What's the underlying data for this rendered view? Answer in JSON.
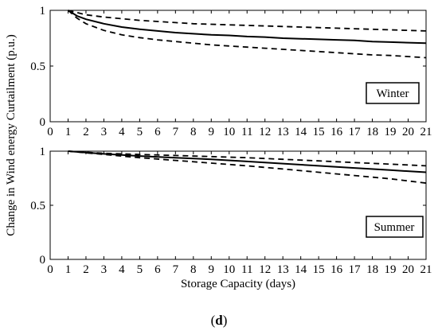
{
  "chart_data": [
    {
      "type": "line",
      "panel": "top",
      "legend_label": "Winter",
      "legend_position": "lower-right",
      "x_ticks": [
        0,
        1,
        2,
        3,
        4,
        5,
        6,
        7,
        8,
        9,
        10,
        11,
        12,
        13,
        14,
        15,
        16,
        17,
        18,
        19,
        20,
        21
      ],
      "y_ticks": [
        "0",
        "0.5",
        "1"
      ],
      "xlim": [
        0,
        21
      ],
      "ylim": [
        0,
        1
      ],
      "grid": false,
      "series": [
        {
          "style": "solid",
          "x": [
            1,
            1.5,
            2,
            3,
            4,
            5,
            6,
            7,
            8,
            9,
            10,
            11,
            12,
            13,
            14,
            15,
            16,
            17,
            18,
            19,
            20,
            21
          ],
          "y": [
            1.0,
            0.95,
            0.92,
            0.88,
            0.85,
            0.83,
            0.815,
            0.8,
            0.79,
            0.78,
            0.775,
            0.765,
            0.76,
            0.75,
            0.745,
            0.74,
            0.735,
            0.73,
            0.72,
            0.715,
            0.71,
            0.705
          ]
        },
        {
          "style": "dashed",
          "x": [
            1,
            1.5,
            2,
            3,
            4,
            5,
            6,
            7,
            8,
            9,
            10,
            11,
            12,
            13,
            14,
            15,
            16,
            17,
            18,
            19,
            20,
            21
          ],
          "y": [
            1.0,
            0.98,
            0.96,
            0.94,
            0.925,
            0.91,
            0.9,
            0.89,
            0.88,
            0.875,
            0.87,
            0.865,
            0.86,
            0.855,
            0.85,
            0.845,
            0.84,
            0.835,
            0.83,
            0.825,
            0.82,
            0.815
          ]
        },
        {
          "style": "dashed",
          "x": [
            1,
            1.5,
            2,
            3,
            4,
            5,
            6,
            7,
            8,
            9,
            10,
            11,
            12,
            13,
            14,
            15,
            16,
            17,
            18,
            19,
            20,
            21
          ],
          "y": [
            1.0,
            0.93,
            0.88,
            0.82,
            0.78,
            0.755,
            0.735,
            0.72,
            0.705,
            0.69,
            0.68,
            0.67,
            0.66,
            0.65,
            0.64,
            0.63,
            0.62,
            0.61,
            0.6,
            0.595,
            0.585,
            0.575
          ]
        }
      ]
    },
    {
      "type": "line",
      "panel": "bottom",
      "legend_label": "Summer",
      "legend_position": "lower-right",
      "x_ticks": [
        0,
        1,
        2,
        3,
        4,
        5,
        6,
        7,
        8,
        9,
        10,
        11,
        12,
        13,
        14,
        15,
        16,
        17,
        18,
        19,
        20,
        21
      ],
      "y_ticks": [
        "0",
        "0.5",
        "1"
      ],
      "xlim": [
        0,
        21
      ],
      "ylim": [
        0,
        1
      ],
      "grid": false,
      "series": [
        {
          "style": "solid",
          "x": [
            1,
            3,
            5,
            7,
            9,
            11,
            13,
            15,
            17,
            19,
            21
          ],
          "y": [
            1.0,
            0.975,
            0.955,
            0.94,
            0.925,
            0.905,
            0.885,
            0.865,
            0.845,
            0.825,
            0.805
          ]
        },
        {
          "style": "dashed",
          "x": [
            1,
            3,
            5,
            7,
            9,
            11,
            13,
            15,
            17,
            19,
            21
          ],
          "y": [
            1.0,
            0.98,
            0.97,
            0.96,
            0.95,
            0.94,
            0.925,
            0.91,
            0.895,
            0.88,
            0.865
          ]
        },
        {
          "style": "dashed",
          "x": [
            1,
            3,
            5,
            7,
            9,
            11,
            13,
            15,
            17,
            19,
            21
          ],
          "y": [
            1.0,
            0.97,
            0.94,
            0.915,
            0.89,
            0.865,
            0.835,
            0.805,
            0.775,
            0.745,
            0.705
          ]
        }
      ]
    }
  ],
  "labels": {
    "xlabel": "Storage Capacity (days)",
    "ylabel": "Change in Wind energy Curtailment (p.u.)",
    "caption_open": "(",
    "caption_letter": "d",
    "caption_close": ")"
  }
}
